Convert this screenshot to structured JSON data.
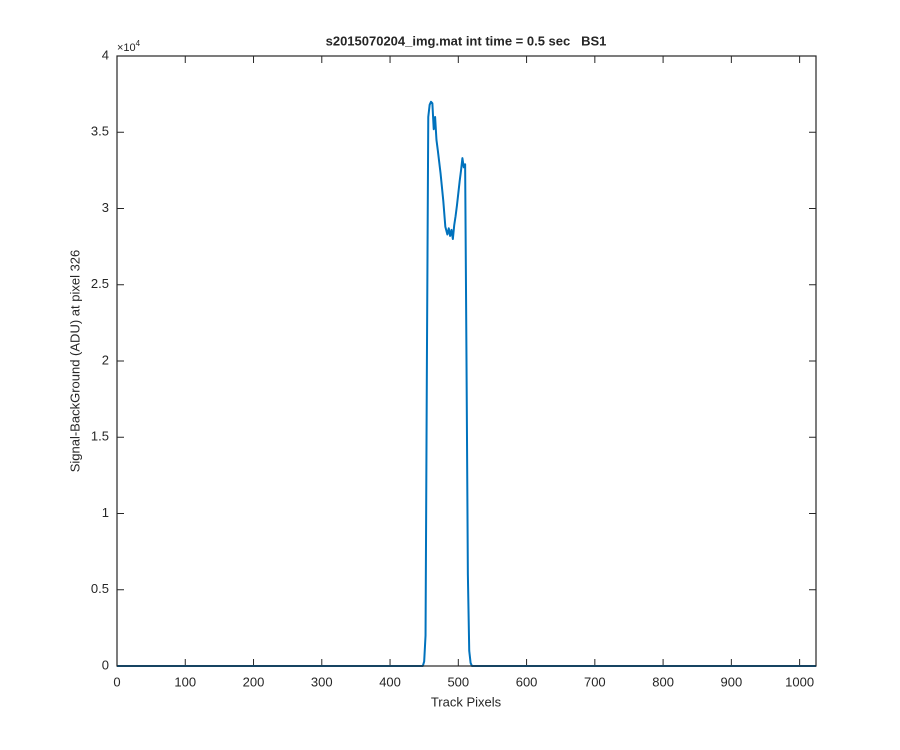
{
  "chart_data": {
    "type": "line",
    "title": "s2015070204_img.mat int time = 0.5 sec   BS1",
    "x_label": "Track Pixels",
    "y_label": "Signal-BackGround (ADU) at pixel 326",
    "y_multiplier": {
      "base": "×10",
      "exponent": "4"
    },
    "x": [
      0,
      50,
      100,
      150,
      200,
      250,
      300,
      350,
      400,
      440,
      448,
      450,
      452,
      454,
      456,
      458,
      460,
      462,
      464,
      466,
      468,
      470,
      474,
      478,
      481,
      484,
      486,
      488,
      490,
      492,
      494,
      496,
      498,
      500,
      502,
      504,
      506,
      508,
      510,
      512,
      514,
      516,
      518,
      520,
      560,
      600,
      650,
      700,
      750,
      800,
      850,
      900,
      950,
      1000,
      1024
    ],
    "values": [
      0,
      0,
      0,
      0,
      0,
      0,
      0,
      0,
      0,
      0,
      0,
      300,
      2000,
      20000,
      36000,
      36800,
      37000,
      36900,
      35200,
      36000,
      34500,
      33800,
      32300,
      30500,
      28800,
      28300,
      28700,
      28200,
      28600,
      28000,
      28900,
      29500,
      30200,
      31000,
      31800,
      32500,
      33300,
      32700,
      32900,
      20000,
      6000,
      1000,
      200,
      0,
      0,
      0,
      0,
      0,
      0,
      0,
      0,
      0,
      0,
      0,
      0
    ],
    "color": "#0072BD",
    "xlim": [
      0,
      1024
    ],
    "ylim": [
      0,
      40000
    ],
    "xticks": [
      0,
      100,
      200,
      300,
      400,
      500,
      600,
      700,
      800,
      900,
      1000
    ],
    "yticks": [
      {
        "value": 0,
        "label": "0"
      },
      {
        "value": 5000,
        "label": "0.5"
      },
      {
        "value": 10000,
        "label": "1"
      },
      {
        "value": 15000,
        "label": "1.5"
      },
      {
        "value": 20000,
        "label": "2"
      },
      {
        "value": 25000,
        "label": "2.5"
      },
      {
        "value": 30000,
        "label": "3"
      },
      {
        "value": 35000,
        "label": "3.5"
      },
      {
        "value": 40000,
        "label": "4"
      }
    ],
    "grid": false
  }
}
